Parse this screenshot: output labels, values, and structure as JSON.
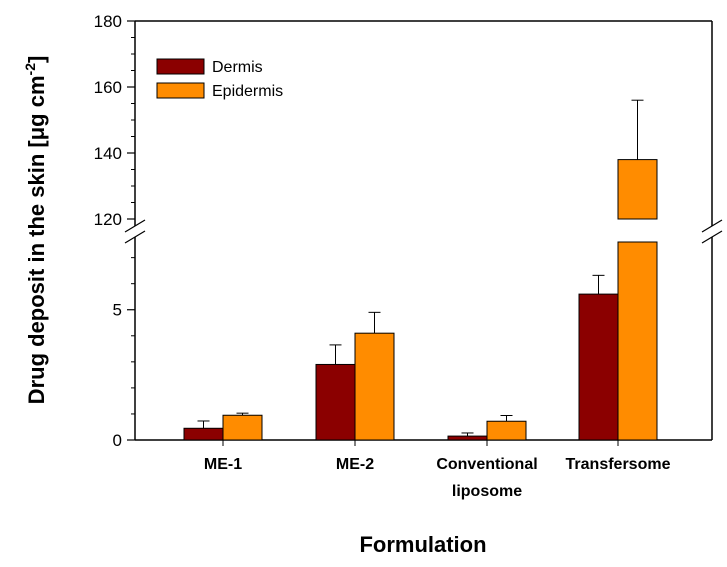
{
  "chart_data": {
    "type": "bar",
    "xlabel": "Formulation",
    "ylabel_main": "Drug deposit in the skin [",
    "ylabel_mu": "μ",
    "ylabel_unit": "g cm",
    "ylabel_exp": "-2",
    "ylabel_close": "]",
    "categories": [
      [
        "ME-1"
      ],
      [
        "ME-2"
      ],
      [
        "Conventional",
        "liposome"
      ],
      [
        "Transfersome"
      ]
    ],
    "series": [
      {
        "name": "Dermis",
        "color": "#8b0000",
        "values": [
          0.45,
          2.9,
          0.15,
          5.6
        ],
        "errors": [
          0.28,
          0.75,
          0.12,
          0.72
        ]
      },
      {
        "name": "Epidermis",
        "color": "#ff8c00",
        "values": [
          0.95,
          4.1,
          0.72,
          138
        ],
        "errors": [
          0.08,
          0.8,
          0.22,
          18
        ]
      }
    ],
    "axis_break": true,
    "lower_axis": {
      "ylim": [
        0,
        7.6
      ],
      "ticks": [
        0,
        5
      ],
      "minor_step": 1
    },
    "upper_axis": {
      "ylim": [
        120,
        180
      ],
      "ticks": [
        120,
        140,
        160,
        180
      ],
      "minor_step": 5
    },
    "legend_position": "top-left",
    "error_bars": "upper"
  }
}
